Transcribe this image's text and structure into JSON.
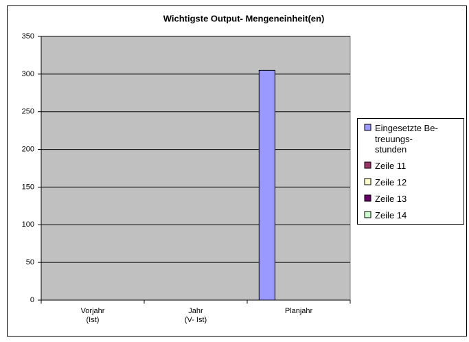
{
  "chart_data": {
    "type": "bar",
    "title": "Wichtigste Output- Mengeneinheit(en)",
    "categories": [
      "Vorjahr\n(Ist)",
      "Jahr\n(V- Ist)",
      "Planjahr"
    ],
    "series": [
      {
        "name": "Eingesetzte Be-\ntreuungs-\nstunden",
        "color": "#9999ff",
        "values": [
          0,
          0,
          305
        ]
      },
      {
        "name": "Zeile 11",
        "color": "#993366",
        "values": [
          0,
          0,
          0
        ]
      },
      {
        "name": "Zeile 12",
        "color": "#ffffcc",
        "values": [
          0,
          0,
          0
        ]
      },
      {
        "name": "Zeile 13",
        "color": "#660066",
        "values": [
          0,
          0,
          0
        ]
      },
      {
        "name": "Zeile 14",
        "color": "#ccffcc",
        "values": [
          0,
          0,
          0
        ]
      }
    ],
    "ylim": [
      0,
      350
    ],
    "yticks": [
      0,
      50,
      100,
      150,
      200,
      250,
      300,
      350
    ],
    "grid": true,
    "legend": "right"
  }
}
